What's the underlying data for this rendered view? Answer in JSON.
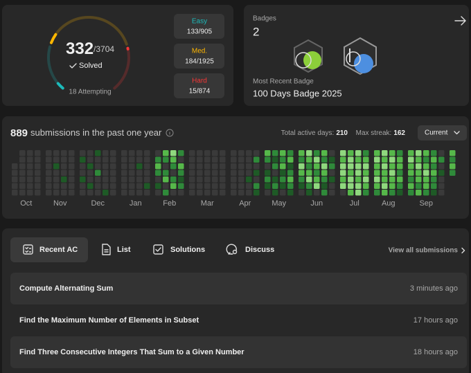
{
  "progress": {
    "solved": 332,
    "total": 3704,
    "total_label": "/3704",
    "status": "Solved",
    "attempting": "18 Attempting",
    "difficulties": [
      {
        "name": "Easy",
        "color": "#1cbaba",
        "solved": 133,
        "total": 905,
        "label": "133/905"
      },
      {
        "name": "Med.",
        "color": "#ffb700",
        "solved": 184,
        "total": 1925,
        "label": "184/1925"
      },
      {
        "name": "Hard",
        "color": "#f63737",
        "solved": 15,
        "total": 874,
        "label": "15/874"
      }
    ]
  },
  "badges": {
    "title": "Badges",
    "count": 2,
    "recent_label": "Most Recent Badge",
    "recent_name": "100 Days Badge 2025"
  },
  "heatmap": {
    "count": 889,
    "title": "submissions in the past one year",
    "active_label": "Total active days:",
    "active_days": 210,
    "streak_label": "Max streak:",
    "max_streak": 162,
    "selector": "Current",
    "colors": [
      "#3a3a3a",
      "#1e5a26",
      "#2f8a3a",
      "#56b84a",
      "#8fd87e"
    ],
    "months": [
      {
        "label": "Oct",
        "weeks": [
          [
            null,
            null,
            0,
            0,
            0,
            0,
            0
          ],
          [
            0,
            0,
            0,
            0,
            0,
            0,
            0
          ],
          [
            0,
            0,
            0,
            0,
            0,
            0,
            0
          ],
          [
            0,
            0,
            0,
            0,
            0,
            0,
            0
          ]
        ]
      },
      {
        "label": "Nov",
        "weeks": [
          [
            0,
            0,
            0,
            0,
            0,
            0,
            0
          ],
          [
            0,
            0,
            1,
            0,
            0,
            0,
            0
          ],
          [
            0,
            0,
            0,
            0,
            1,
            0,
            0
          ],
          [
            0,
            0,
            0,
            0,
            0,
            0,
            0
          ]
        ]
      },
      {
        "label": "Dec",
        "weeks": [
          [
            0,
            1,
            0,
            0,
            1,
            0,
            0
          ],
          [
            0,
            0,
            1,
            0,
            0,
            1,
            0
          ],
          [
            1,
            0,
            0,
            2,
            0,
            0,
            0
          ],
          [
            0,
            0,
            0,
            0,
            0,
            0,
            1
          ],
          [
            0,
            0,
            0,
            0,
            0,
            0,
            0
          ]
        ]
      },
      {
        "label": "Jan",
        "weeks": [
          [
            0,
            0,
            0,
            0,
            0,
            0,
            0
          ],
          [
            0,
            0,
            0,
            0,
            0,
            0,
            0
          ],
          [
            0,
            0,
            1,
            0,
            0,
            0,
            0
          ],
          [
            0,
            0,
            0,
            0,
            0,
            1,
            0
          ]
        ]
      },
      {
        "label": "Feb",
        "weeks": [
          [
            0,
            2,
            3,
            2,
            0,
            1,
            0
          ],
          [
            3,
            2,
            0,
            2,
            3,
            0,
            2
          ],
          [
            4,
            3,
            2,
            0,
            2,
            3,
            0
          ],
          [
            2,
            0,
            3,
            2,
            1,
            2,
            0
          ]
        ]
      },
      {
        "label": "Mar",
        "weeks": [
          [
            0,
            0,
            0,
            0,
            0,
            0,
            0
          ],
          [
            0,
            0,
            0,
            0,
            0,
            0,
            0
          ],
          [
            0,
            0,
            0,
            0,
            0,
            0,
            0
          ],
          [
            0,
            0,
            0,
            0,
            0,
            0,
            0
          ],
          [
            0,
            0,
            0,
            0,
            0,
            0,
            0
          ]
        ]
      },
      {
        "label": "Apr",
        "weeks": [
          [
            0,
            0,
            0,
            0,
            0,
            0,
            0
          ],
          [
            0,
            0,
            0,
            0,
            0,
            0,
            0
          ],
          [
            0,
            0,
            0,
            0,
            1,
            0,
            0
          ],
          [
            0,
            2,
            0,
            1,
            0,
            2,
            1
          ]
        ]
      },
      {
        "label": "May",
        "weeks": [
          [
            3,
            2,
            0,
            1,
            2,
            1,
            0
          ],
          [
            2,
            1,
            2,
            0,
            1,
            2,
            1
          ],
          [
            3,
            2,
            3,
            1,
            2,
            1,
            0
          ],
          [
            2,
            3,
            1,
            2,
            3,
            2,
            1
          ]
        ]
      },
      {
        "label": "Jun",
        "weeks": [
          [
            3,
            2,
            4,
            3,
            2,
            1,
            0
          ],
          [
            4,
            3,
            2,
            3,
            4,
            2,
            1
          ],
          [
            2,
            4,
            3,
            2,
            3,
            4,
            0
          ],
          [
            3,
            2,
            4,
            3,
            2,
            1,
            2
          ],
          [
            0,
            1,
            2,
            0,
            1,
            0,
            0
          ]
        ]
      },
      {
        "label": "Jul",
        "weeks": [
          [
            4,
            3,
            4,
            4,
            3,
            4,
            0
          ],
          [
            3,
            4,
            4,
            3,
            4,
            4,
            3
          ],
          [
            4,
            3,
            4,
            4,
            3,
            4,
            4
          ],
          [
            2,
            3,
            4,
            3,
            4,
            3,
            2
          ]
        ]
      },
      {
        "label": "Aug",
        "weeks": [
          [
            3,
            4,
            3,
            3,
            4,
            3,
            2
          ],
          [
            4,
            3,
            4,
            3,
            3,
            4,
            3
          ],
          [
            3,
            4,
            3,
            4,
            3,
            3,
            2
          ],
          [
            2,
            3,
            3,
            2,
            3,
            2,
            1
          ]
        ]
      },
      {
        "label": "Sep",
        "weeks": [
          [
            3,
            4,
            3,
            3,
            2,
            3,
            2
          ],
          [
            4,
            3,
            4,
            3,
            3,
            2,
            3
          ],
          [
            3,
            2,
            3,
            4,
            3,
            3,
            2
          ],
          [
            2,
            3,
            2,
            3,
            2,
            2,
            1
          ],
          [
            0,
            2,
            0,
            1,
            0,
            0,
            0
          ]
        ]
      },
      {
        "label": null,
        "weeks": [
          [
            3,
            2,
            3,
            2,
            null,
            null,
            null
          ]
        ]
      }
    ]
  },
  "tabs": [
    "Recent AC",
    "List",
    "Solutions",
    "Discuss"
  ],
  "view_all": "View all submissions",
  "submissions": [
    {
      "title": "Compute Alternating Sum",
      "time": "3 minutes ago"
    },
    {
      "title": "Find the Maximum Number of Elements in Subset",
      "time": "17 hours ago"
    },
    {
      "title": "Find Three Consecutive Integers That Sum to a Given Number",
      "time": "18 hours ago"
    }
  ]
}
